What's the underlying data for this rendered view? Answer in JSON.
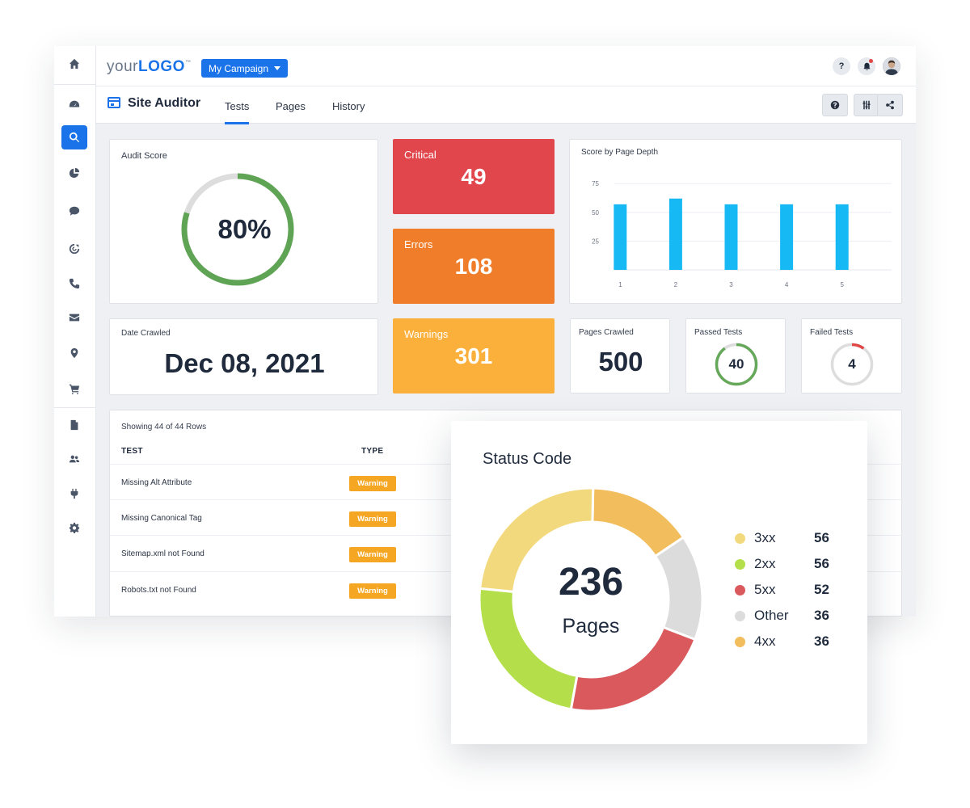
{
  "header": {
    "logo_text_1": "your",
    "logo_text_2": "LOGO",
    "logo_tm": "™",
    "campaign_label": "My Campaign",
    "help_label": "?"
  },
  "sidebar": {
    "items": [
      {
        "icon": "home-icon"
      },
      {
        "icon": "dashboard-icon"
      },
      {
        "icon": "search-icon",
        "active": true
      },
      {
        "icon": "pie-chart-icon"
      },
      {
        "icon": "chat-icon"
      },
      {
        "icon": "target-icon"
      },
      {
        "icon": "phone-icon"
      },
      {
        "icon": "mail-icon"
      },
      {
        "icon": "location-pin-icon"
      },
      {
        "icon": "cart-icon"
      },
      {
        "icon": "document-icon"
      },
      {
        "icon": "users-icon"
      },
      {
        "icon": "plug-icon"
      },
      {
        "icon": "gear-icon"
      }
    ]
  },
  "subheader": {
    "title": "Site Auditor",
    "tabs": [
      {
        "label": "Tests",
        "active": true
      },
      {
        "label": "Pages"
      },
      {
        "label": "History"
      }
    ]
  },
  "audit_score": {
    "label": "Audit Score",
    "value": "80%",
    "fraction": 0.8
  },
  "critical": {
    "label": "Critical",
    "value": "49"
  },
  "errors": {
    "label": "Errors",
    "value": "108"
  },
  "warnings": {
    "label": "Warnings",
    "value": "301"
  },
  "date_crawled": {
    "label": "Date Crawled",
    "value": "Dec 08, 2021"
  },
  "pages_crawled": {
    "label": "Pages Crawled",
    "value": "500"
  },
  "passed_tests": {
    "label": "Passed Tests",
    "value": "40",
    "fraction": 0.9
  },
  "failed_tests": {
    "label": "Failed Tests",
    "value": "4",
    "fraction": 0.1
  },
  "table": {
    "count_text": "Showing 44 of 44 Rows",
    "columns": [
      "TEST",
      "TYPE"
    ],
    "rows": [
      {
        "test": "Missing Alt Attribute",
        "type": "Warning"
      },
      {
        "test": "Missing Canonical Tag",
        "type": "Warning"
      },
      {
        "test": "Sitemap.xml not Found",
        "type": "Warning"
      },
      {
        "test": "Robots.txt not Found",
        "type": "Warning"
      }
    ]
  },
  "colors": {
    "primary": "#1a73e8",
    "critical": "#e0464b",
    "errors": "#ef7d2a",
    "warnings": "#fbb03b",
    "bar": "#16b9f4",
    "passed": "#66a85a",
    "failed": "#e04848"
  },
  "chart_data": [
    {
      "type": "bar",
      "title": "Score by Page Depth",
      "categories": [
        "1",
        "2",
        "3",
        "4",
        "5"
      ],
      "values": [
        57,
        62,
        57,
        57,
        57
      ],
      "yticks": [
        25,
        50,
        75
      ],
      "ylim": [
        0,
        85
      ],
      "grid": true,
      "color": "#16b9f4"
    },
    {
      "type": "pie",
      "title": "Status Code",
      "total": "236",
      "total_unit": "Pages",
      "slices": [
        {
          "name": "4xx",
          "value": 36,
          "color": "#f2bd5c"
        },
        {
          "name": "Other",
          "value": 36,
          "color": "#dcdcdc"
        },
        {
          "name": "5xx",
          "value": 52,
          "color": "#d9595d"
        },
        {
          "name": "2xx",
          "value": 56,
          "color": "#b4df4a"
        },
        {
          "name": "3xx",
          "value": 56,
          "color": "#f3d97e"
        }
      ],
      "legend": [
        {
          "name": "3xx",
          "value": "56",
          "color": "#f3d97e"
        },
        {
          "name": "2xx",
          "value": "56",
          "color": "#b4df4a"
        },
        {
          "name": "5xx",
          "value": "52",
          "color": "#d9595d"
        },
        {
          "name": "Other",
          "value": "36",
          "color": "#dcdcdc"
        },
        {
          "name": "4xx",
          "value": "36",
          "color": "#f2bd5c"
        }
      ],
      "legend_position": "right"
    }
  ]
}
